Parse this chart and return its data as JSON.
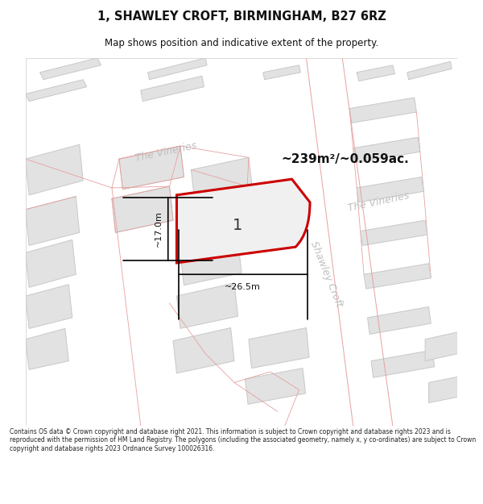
{
  "title": "1, SHAWLEY CROFT, BIRMINGHAM, B27 6RZ",
  "subtitle": "Map shows position and indicative extent of the property.",
  "area_text": "~239m²/~0.059ac.",
  "width_label": "~26.5m",
  "height_label": "~17.0m",
  "property_number": "1",
  "street_label_vineries_top": "The Vineries",
  "street_label_vineries_right": "The Vineries",
  "street_label_shawley": "Shawley Croft",
  "footer_text": "Contains OS data © Crown copyright and database right 2021. This information is subject to Crown copyright and database rights 2023 and is reproduced with the permission of HM Land Registry. The polygons (including the associated geometry, namely x, y co-ordinates) are subject to Crown copyright and database rights 2023 Ordnance Survey 100026316.",
  "bg_color": "#ffffff",
  "map_bg": "#f5f5f5",
  "property_fill": "#f0f0f0",
  "property_edge": "#cc0000",
  "road_color": "#ffffff",
  "building_fill": "#e2e2e2",
  "building_stroke": "#c8c8c8",
  "cadastral_color": "#e8a0a0",
  "street_text_color": "#c0c0c0",
  "dim_color": "#111111",
  "title_color": "#111111",
  "footer_color": "#222222",
  "title_fontsize": 10.5,
  "subtitle_fontsize": 8.5,
  "footer_fontsize": 5.5
}
